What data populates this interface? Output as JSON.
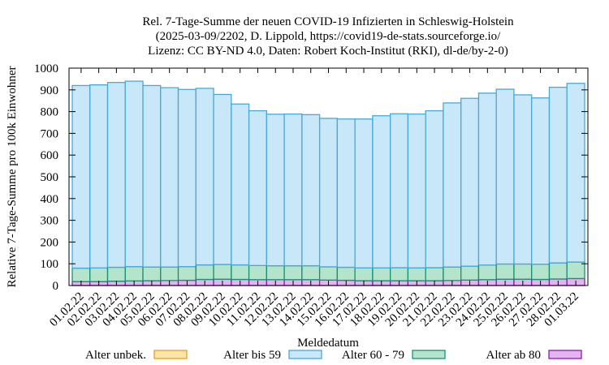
{
  "chart_data": {
    "type": "bar",
    "stacked": true,
    "title": [
      "Rel. 7-Tage-Summe der neuen COVID-19 Infizierten in Schleswig-Holstein",
      "(2025-03-09/2202, D. Lippold, https://covid19-de-stats.sourceforge.io/",
      "Lizenz: CC BY-ND 4.0, Daten: Robert Koch-Institut (RKI), dl-de/by-2-0)"
    ],
    "xlabel": "Meldedatum",
    "ylabel": "Relative 7-Tage-Summe pro 100k Einwohner",
    "ylim": [
      0,
      1000
    ],
    "yticks": [
      "0",
      "100",
      "200",
      "300",
      "400",
      "500",
      "600",
      "700",
      "800",
      "900",
      "1000"
    ],
    "grid": false,
    "legend_position": "bottom",
    "categories": [
      "01.02.22",
      "02.02.22",
      "03.02.22",
      "04.02.22",
      "05.02.22",
      "06.02.22",
      "07.02.22",
      "08.02.22",
      "09.02.22",
      "10.02.22",
      "11.02.22",
      "12.02.22",
      "13.02.22",
      "14.02.22",
      "15.02.22",
      "16.02.22",
      "17.02.22",
      "18.02.22",
      "19.02.22",
      "20.02.22",
      "21.02.22",
      "22.02.22",
      "23.02.22",
      "24.02.22",
      "25.02.22",
      "26.02.22",
      "27.02.22",
      "28.02.22",
      "01.03.22"
    ],
    "series": [
      {
        "name": "Alter unbek.",
        "color": "#fde4a8",
        "edge": "#e6a020",
        "values": [
          0,
          0,
          0,
          0,
          0,
          0,
          0,
          0,
          0,
          0,
          0,
          0,
          0,
          0,
          0,
          0,
          0,
          0,
          0,
          0,
          0,
          0,
          0,
          0,
          0,
          0,
          0,
          0,
          0
        ]
      },
      {
        "name": "Alter ab 80",
        "color": "#e4b4f0",
        "edge": "#8a1ab0",
        "values": [
          18,
          18,
          20,
          21,
          22,
          23,
          24,
          28,
          29,
          28,
          27,
          27,
          27,
          27,
          25,
          24,
          22,
          22,
          22,
          22,
          22,
          23,
          25,
          27,
          29,
          29,
          28,
          30,
          32
        ]
      },
      {
        "name": "Alter 60 - 79",
        "color": "#b4e4cc",
        "edge": "#1a9070",
        "values": [
          62,
          63,
          64,
          66,
          63,
          62,
          63,
          67,
          68,
          67,
          65,
          64,
          64,
          64,
          61,
          60,
          59,
          59,
          60,
          59,
          60,
          62,
          64,
          67,
          70,
          70,
          70,
          74,
          76
        ]
      },
      {
        "name": "Alter bis 59",
        "color": "#c8e8fa",
        "edge": "#4aa8d8",
        "values": [
          840,
          842,
          850,
          853,
          835,
          825,
          815,
          812,
          782,
          740,
          712,
          697,
          698,
          695,
          683,
          682,
          685,
          700,
          708,
          708,
          722,
          755,
          772,
          791,
          804,
          778,
          765,
          808,
          822
        ]
      }
    ],
    "legend_order": [
      "Alter unbek.",
      "Alter bis 59",
      "Alter 60 - 79",
      "Alter ab 80"
    ]
  }
}
